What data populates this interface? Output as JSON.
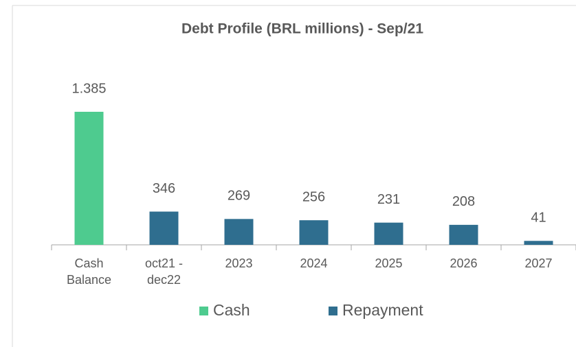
{
  "chart_data": {
    "type": "bar",
    "title": "Debt Profile (BRL millions)  -  Sep/21",
    "categories": [
      "Cash Balance",
      "oct21 - dec22",
      "2023",
      "2024",
      "2025",
      "2026",
      "2027"
    ],
    "series": [
      {
        "name": "Cash",
        "color": "#4ecb8f",
        "values": [
          1385,
          null,
          null,
          null,
          null,
          null,
          null
        ],
        "value_labels": [
          "1.385",
          null,
          null,
          null,
          null,
          null,
          null
        ]
      },
      {
        "name": "Repayment",
        "color": "#2f6e8f",
        "values": [
          null,
          346,
          269,
          256,
          231,
          208,
          41
        ]
      }
    ],
    "legend": "bottom"
  }
}
